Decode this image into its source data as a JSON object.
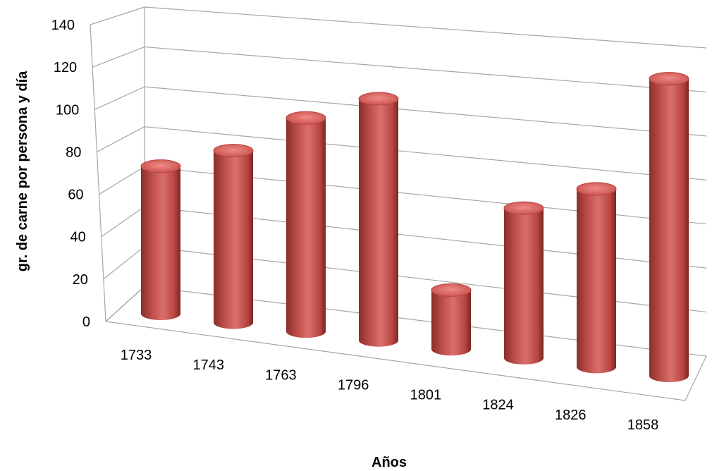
{
  "chart_data": {
    "type": "bar",
    "style": "3d-cylinder",
    "categories": [
      "1733",
      "1743",
      "1763",
      "1796",
      "1801",
      "1824",
      "1826",
      "1858"
    ],
    "values": [
      74,
      85,
      104,
      116,
      28,
      70,
      82,
      135
    ],
    "xlabel": "Años",
    "ylabel": "gr. de carne por persona y día",
    "ylim": [
      0,
      140
    ],
    "yticks": [
      "0",
      "20",
      "40",
      "60",
      "80",
      "100",
      "120",
      "140"
    ],
    "grid": true,
    "legend": "none",
    "colors": {
      "bar": "#c0504d",
      "bar_dark": "#7a2624",
      "bar_light": "#ee9a97",
      "grid": "#a6a6a6"
    }
  }
}
